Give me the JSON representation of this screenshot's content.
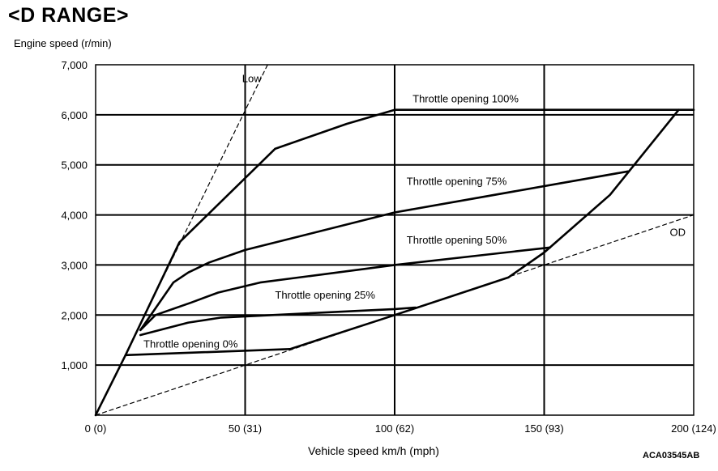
{
  "title": "<D RANGE>",
  "y_axis_label": "Engine speed (r/min)",
  "x_axis_label": "Vehicle speed  km/h (mph)",
  "figure_id": "ACA03545AB",
  "chart_data": {
    "type": "line",
    "title": "<D RANGE>",
    "xlabel": "Vehicle speed  km/h (mph)",
    "ylabel": "Engine speed (r/min)",
    "xlim": [
      0,
      200
    ],
    "ylim": [
      0,
      7000
    ],
    "x_ticks": [
      {
        "value": 0,
        "label": "0 (0)"
      },
      {
        "value": 50,
        "label": "50 (31)"
      },
      {
        "value": 100,
        "label": "100 (62)"
      },
      {
        "value": 150,
        "label": "150 (93)"
      },
      {
        "value": 200,
        "label": "200 (124)"
      }
    ],
    "y_ticks": [
      {
        "value": 1000,
        "label": "1,000"
      },
      {
        "value": 2000,
        "label": "2,000"
      },
      {
        "value": 3000,
        "label": "3,000"
      },
      {
        "value": 4000,
        "label": "4,000"
      },
      {
        "value": 5000,
        "label": "5,000"
      },
      {
        "value": 6000,
        "label": "6,000"
      },
      {
        "value": 7000,
        "label": "7,000"
      }
    ],
    "grid": true,
    "series": [
      {
        "name": "Low",
        "style": "dashed",
        "x": [
          0,
          57.5
        ],
        "y": [
          0,
          7000
        ]
      },
      {
        "name": "OD",
        "style": "dashed",
        "x": [
          0,
          200
        ],
        "y": [
          0,
          4000
        ]
      },
      {
        "name": "Throttle opening 100%",
        "style": "solid",
        "x": [
          0,
          10,
          28,
          60,
          84,
          100,
          200
        ],
        "y": [
          0,
          1200,
          3450,
          5320,
          5820,
          6100,
          6100
        ]
      },
      {
        "name": "Throttle opening 75%",
        "style": "solid",
        "x": [
          15,
          26,
          31,
          38,
          50,
          100,
          178
        ],
        "y": [
          1700,
          2650,
          2850,
          3050,
          3300,
          4050,
          4870
        ]
      },
      {
        "name": "Throttle opening 50%",
        "style": "solid",
        "x": [
          15,
          20,
          32,
          41,
          55,
          100,
          152
        ],
        "y": [
          1700,
          2000,
          2250,
          2450,
          2650,
          3000,
          3350
        ]
      },
      {
        "name": "Throttle opening 25%",
        "style": "solid",
        "x": [
          15,
          31,
          42,
          100,
          107
        ],
        "y": [
          1600,
          1850,
          1950,
          2120,
          2150
        ]
      },
      {
        "name": "Throttle opening 0%",
        "style": "solid",
        "x": [
          10,
          65
        ],
        "y": [
          1200,
          1320
        ]
      },
      {
        "name": "",
        "style": "solid",
        "x": [
          65,
          100,
          138,
          150,
          172,
          195
        ],
        "y": [
          1320,
          2000,
          2750,
          3250,
          4400,
          6100
        ]
      }
    ],
    "annotations": [
      {
        "text": "Low",
        "x": 49,
        "y": 6650
      },
      {
        "text": "Throttle opening 100%",
        "x": 106,
        "y": 6250
      },
      {
        "text": "Throttle opening 75%",
        "x": 104,
        "y": 4600
      },
      {
        "text": "Throttle opening 50%",
        "x": 104,
        "y": 3430
      },
      {
        "text": "Throttle opening 25%",
        "x": 60,
        "y": 2330
      },
      {
        "text": "Throttle opening 0%",
        "x": 16,
        "y": 1350
      },
      {
        "text": "OD",
        "x": 192,
        "y": 3580
      }
    ]
  }
}
